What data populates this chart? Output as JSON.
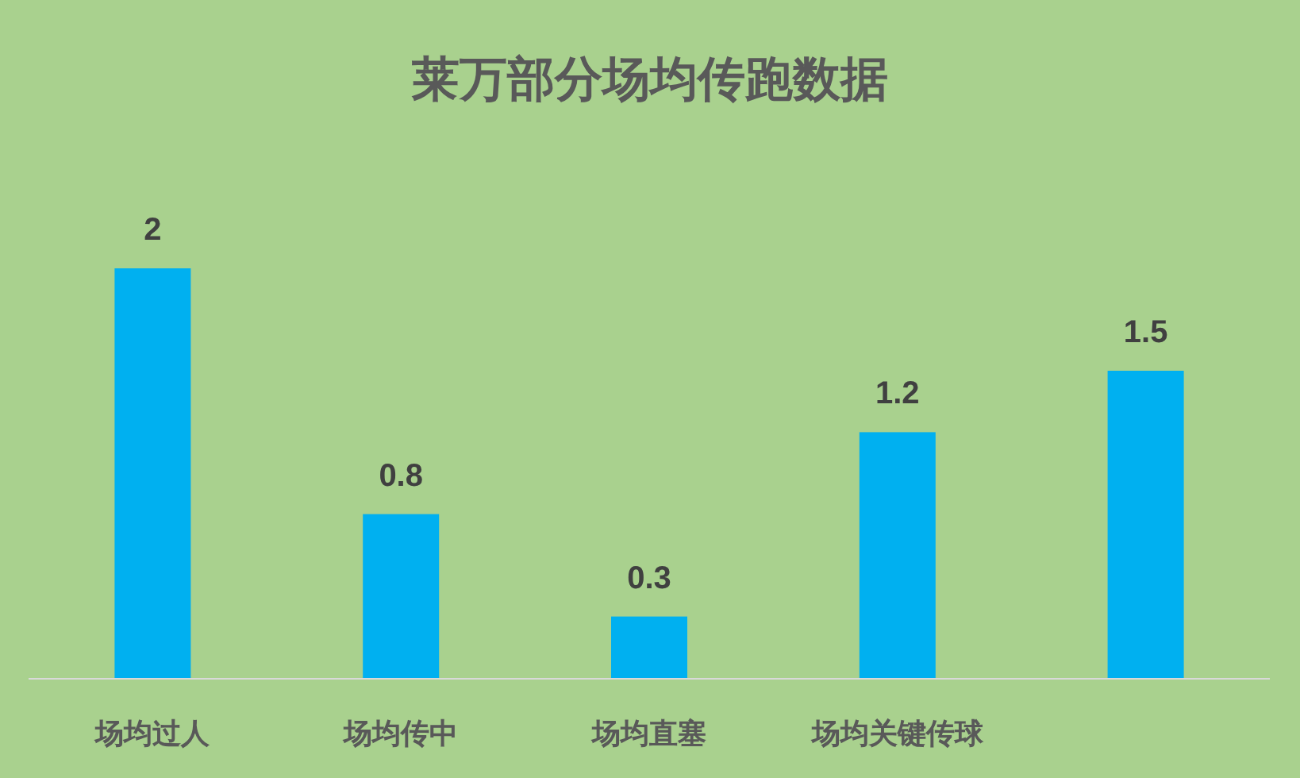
{
  "chart_data": {
    "type": "bar",
    "title": "莱万部分场均传跑数据",
    "categories": [
      "场均过人",
      "场均传中",
      "场均直塞",
      "场均关键传球",
      null
    ],
    "values": [
      2,
      0.8,
      0.3,
      1.2,
      1.5
    ],
    "color": "#00b0f0",
    "data_labels": true
  }
}
